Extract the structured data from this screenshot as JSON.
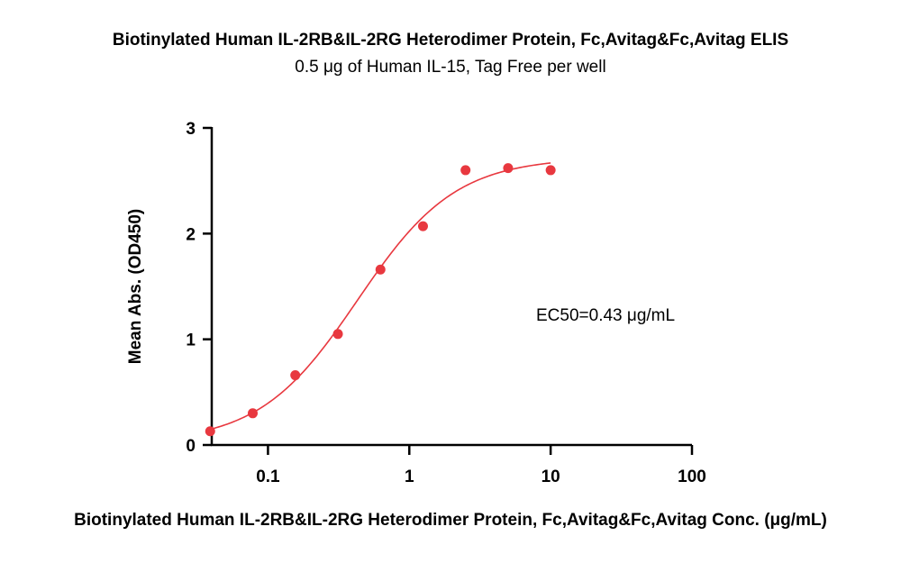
{
  "chart_data": {
    "type": "scatter",
    "title": "Biotinylated Human IL-2RB&IL-2RG Heterodimer Protein, Fc,Avitag&Fc,Avitag ELIS",
    "subtitle": "0.5 μg of Human IL-15, Tag Free per well",
    "xlabel": "Biotinylated Human IL-2RB&IL-2RG Heterodimer Protein, Fc,Avitag&Fc,Avitag Conc. (μg/mL)",
    "ylabel": "Mean Abs. (OD450)",
    "x_scale": "log",
    "xlim": [
      0.04,
      100
    ],
    "ylim": [
      0,
      3
    ],
    "x_ticks": [
      0.1,
      1,
      10,
      100
    ],
    "x_tick_labels": [
      "0.1",
      "1",
      "10",
      "100"
    ],
    "y_ticks": [
      0,
      1,
      2,
      3
    ],
    "y_tick_labels": [
      "0",
      "1",
      "2",
      "3"
    ],
    "grid": false,
    "annotation": "EC50=0.43 μg/mL",
    "series": [
      {
        "color": "#e8383f",
        "x": [
          0.039,
          0.078,
          0.156,
          0.3125,
          0.625,
          1.25,
          2.5,
          5,
          10
        ],
        "y": [
          0.13,
          0.3,
          0.66,
          1.05,
          1.66,
          2.07,
          2.6,
          2.62,
          2.6
        ]
      }
    ],
    "fit_curve": {
      "model": "4PL",
      "bottom": 0.02,
      "top": 2.72,
      "ec50": 0.43,
      "hill": 1.25,
      "x_range": [
        0.039,
        10
      ]
    }
  }
}
